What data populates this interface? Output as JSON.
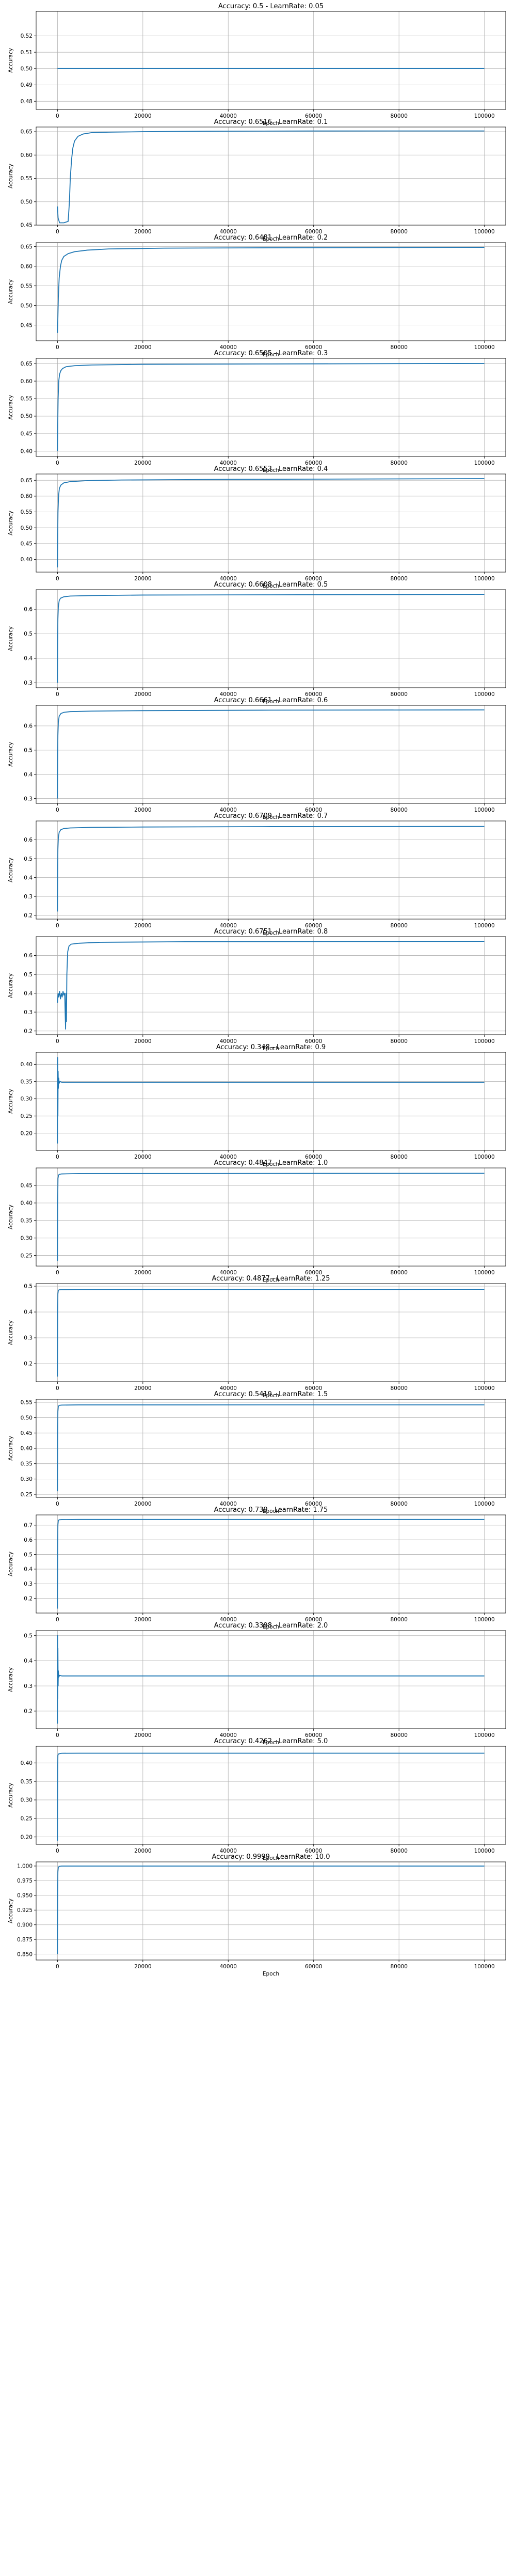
{
  "chart_data": [
    {
      "type": "line",
      "title": "Accuracy: 0.5 - LearnRate: 0.05",
      "xlabel": "Epoch",
      "ylabel": "Accuracy",
      "xlim": [
        -5000,
        105000
      ],
      "ylim": [
        0.475,
        0.535
      ],
      "xticks": [
        0,
        20000,
        40000,
        60000,
        80000,
        100000
      ],
      "yticks": [
        0.48,
        0.49,
        0.5,
        0.51,
        0.52
      ],
      "ytick_labels": [
        "0.48",
        "0.49",
        "0.50",
        "0.51",
        "0.52"
      ],
      "grid": true,
      "color": "#1f77b4",
      "x": [
        0,
        100000
      ],
      "y": [
        0.5,
        0.5
      ]
    },
    {
      "type": "line",
      "title": "Accuracy: 0.6516 - LearnRate: 0.1",
      "xlabel": "Epoch",
      "ylabel": "Accuracy",
      "xlim": [
        -5000,
        105000
      ],
      "ylim": [
        0.45,
        0.66
      ],
      "xticks": [
        0,
        20000,
        40000,
        60000,
        80000,
        100000
      ],
      "yticks": [
        0.45,
        0.5,
        0.55,
        0.6,
        0.65
      ],
      "ytick_labels": [
        "0.45",
        "0.50",
        "0.55",
        "0.60",
        "0.65"
      ],
      "grid": true,
      "color": "#1f77b4",
      "x": [
        0,
        150,
        500,
        1500,
        2500,
        2800,
        3000,
        3300,
        3600,
        4000,
        4800,
        6000,
        8000,
        12000,
        20000,
        35000,
        60000,
        100000
      ],
      "y": [
        0.49,
        0.465,
        0.455,
        0.455,
        0.458,
        0.5,
        0.55,
        0.59,
        0.615,
        0.63,
        0.64,
        0.645,
        0.648,
        0.649,
        0.65,
        0.651,
        0.6515,
        0.6516
      ]
    },
    {
      "type": "line",
      "title": "Accuracy: 0.6481 - LearnRate: 0.2",
      "xlabel": "Epoch",
      "ylabel": "Accuracy",
      "xlim": [
        -5000,
        105000
      ],
      "ylim": [
        0.41,
        0.66
      ],
      "xticks": [
        0,
        20000,
        40000,
        60000,
        80000,
        100000
      ],
      "yticks": [
        0.45,
        0.5,
        0.55,
        0.6,
        0.65
      ],
      "ytick_labels": [
        "0.45",
        "0.50",
        "0.55",
        "0.60",
        "0.65"
      ],
      "grid": true,
      "color": "#1f77b4",
      "x": [
        0,
        100,
        200,
        400,
        700,
        1000,
        1500,
        2500,
        4000,
        7000,
        12000,
        25000,
        50000,
        100000
      ],
      "y": [
        0.43,
        0.47,
        0.52,
        0.57,
        0.6,
        0.615,
        0.625,
        0.632,
        0.637,
        0.641,
        0.644,
        0.646,
        0.647,
        0.6481
      ]
    },
    {
      "type": "line",
      "title": "Accuracy: 0.6505 - LearnRate: 0.3",
      "xlabel": "Epoch",
      "ylabel": "Accuracy",
      "xlim": [
        -5000,
        105000
      ],
      "ylim": [
        0.385,
        0.665
      ],
      "xticks": [
        0,
        20000,
        40000,
        60000,
        80000,
        100000
      ],
      "yticks": [
        0.4,
        0.45,
        0.5,
        0.55,
        0.6,
        0.65
      ],
      "ytick_labels": [
        "0.40",
        "0.45",
        "0.50",
        "0.55",
        "0.60",
        "0.65"
      ],
      "grid": true,
      "color": "#1f77b4",
      "x": [
        0,
        60,
        150,
        300,
        500,
        800,
        1200,
        2000,
        4000,
        8000,
        20000,
        50000,
        100000
      ],
      "y": [
        0.4,
        0.47,
        0.55,
        0.6,
        0.62,
        0.63,
        0.636,
        0.641,
        0.644,
        0.646,
        0.648,
        0.649,
        0.6505
      ]
    },
    {
      "type": "line",
      "title": "Accuracy: 0.6553 - LearnRate: 0.4",
      "xlabel": "Epoch",
      "ylabel": "Accuracy",
      "xlim": [
        -5000,
        105000
      ],
      "ylim": [
        0.36,
        0.67
      ],
      "xticks": [
        0,
        20000,
        40000,
        60000,
        80000,
        100000
      ],
      "yticks": [
        0.4,
        0.45,
        0.5,
        0.55,
        0.6,
        0.65
      ],
      "ytick_labels": [
        "0.40",
        "0.45",
        "0.50",
        "0.55",
        "0.60",
        "0.65"
      ],
      "grid": true,
      "color": "#1f77b4",
      "x": [
        0,
        50,
        120,
        250,
        450,
        800,
        1500,
        3000,
        7000,
        15000,
        40000,
        100000
      ],
      "y": [
        0.375,
        0.46,
        0.55,
        0.6,
        0.625,
        0.635,
        0.642,
        0.646,
        0.649,
        0.651,
        0.653,
        0.6553
      ]
    },
    {
      "type": "line",
      "title": "Accuracy: 0.6608 - LearnRate: 0.5",
      "xlabel": "Epoch",
      "ylabel": "Accuracy",
      "xlim": [
        -5000,
        105000
      ],
      "ylim": [
        0.28,
        0.68
      ],
      "xticks": [
        0,
        20000,
        40000,
        60000,
        80000,
        100000
      ],
      "yticks": [
        0.3,
        0.4,
        0.5,
        0.6
      ],
      "ytick_labels": [
        "0.3",
        "0.4",
        "0.5",
        "0.6"
      ],
      "grid": true,
      "color": "#1f77b4",
      "x": [
        0,
        40,
        100,
        200,
        400,
        700,
        1500,
        3000,
        8000,
        20000,
        50000,
        100000
      ],
      "y": [
        0.3,
        0.45,
        0.56,
        0.61,
        0.635,
        0.645,
        0.651,
        0.654,
        0.656,
        0.658,
        0.659,
        0.6608
      ]
    },
    {
      "type": "line",
      "title": "Accuracy: 0.6661 - LearnRate: 0.6",
      "xlabel": "Epoch",
      "ylabel": "Accuracy",
      "xlim": [
        -5000,
        105000
      ],
      "ylim": [
        0.28,
        0.685
      ],
      "xticks": [
        0,
        20000,
        40000,
        60000,
        80000,
        100000
      ],
      "yticks": [
        0.3,
        0.4,
        0.5,
        0.6
      ],
      "ytick_labels": [
        "0.3",
        "0.4",
        "0.5",
        "0.6"
      ],
      "grid": true,
      "color": "#1f77b4",
      "x": [
        0,
        40,
        100,
        200,
        400,
        800,
        1500,
        3000,
        8000,
        20000,
        50000,
        100000
      ],
      "y": [
        0.3,
        0.45,
        0.56,
        0.615,
        0.64,
        0.651,
        0.656,
        0.659,
        0.661,
        0.663,
        0.665,
        0.6661
      ]
    },
    {
      "type": "line",
      "title": "Accuracy: 0.6709 - LearnRate: 0.7",
      "xlabel": "Epoch",
      "ylabel": "Accuracy",
      "xlim": [
        -5000,
        105000
      ],
      "ylim": [
        0.18,
        0.7
      ],
      "xticks": [
        0,
        20000,
        40000,
        60000,
        80000,
        100000
      ],
      "yticks": [
        0.2,
        0.3,
        0.4,
        0.5,
        0.6
      ],
      "ytick_labels": [
        "0.2",
        "0.3",
        "0.4",
        "0.5",
        "0.6"
      ],
      "grid": true,
      "color": "#1f77b4",
      "x": [
        0,
        40,
        100,
        200,
        400,
        800,
        1500,
        3000,
        8000,
        20000,
        50000,
        100000
      ],
      "y": [
        0.22,
        0.4,
        0.55,
        0.61,
        0.64,
        0.654,
        0.66,
        0.663,
        0.666,
        0.668,
        0.67,
        0.6709
      ]
    },
    {
      "type": "line",
      "title": "Accuracy: 0.6751 - LearnRate: 0.8",
      "xlabel": "Epoch",
      "ylabel": "Accuracy",
      "xlim": [
        -5000,
        105000
      ],
      "ylim": [
        0.18,
        0.7
      ],
      "xticks": [
        0,
        20000,
        40000,
        60000,
        80000,
        100000
      ],
      "yticks": [
        0.2,
        0.3,
        0.4,
        0.5,
        0.6
      ],
      "ytick_labels": [
        "0.2",
        "0.3",
        "0.4",
        "0.5",
        "0.6"
      ],
      "grid": true,
      "color": "#1f77b4",
      "x": [
        0,
        150,
        300,
        500,
        700,
        900,
        1100,
        1300,
        1500,
        1700,
        1800,
        1900,
        2000,
        2100,
        2200,
        2400,
        2700,
        3200,
        5000,
        10000,
        30000,
        100000
      ],
      "y": [
        0.35,
        0.4,
        0.38,
        0.41,
        0.37,
        0.4,
        0.38,
        0.41,
        0.39,
        0.4,
        0.3,
        0.21,
        0.4,
        0.25,
        0.5,
        0.62,
        0.65,
        0.66,
        0.665,
        0.67,
        0.673,
        0.6751
      ]
    },
    {
      "type": "line",
      "title": "Accuracy: 0.348 - LearnRate: 0.9",
      "xlabel": "Epoch",
      "ylabel": "Accuracy",
      "xlim": [
        -5000,
        105000
      ],
      "ylim": [
        0.15,
        0.435
      ],
      "xticks": [
        0,
        20000,
        40000,
        60000,
        80000,
        100000
      ],
      "yticks": [
        0.2,
        0.25,
        0.3,
        0.35,
        0.4
      ],
      "ytick_labels": [
        "0.20",
        "0.25",
        "0.30",
        "0.35",
        "0.40"
      ],
      "grid": true,
      "color": "#1f77b4",
      "x": [
        0,
        50,
        100,
        150,
        200,
        300,
        400,
        600,
        1000,
        100000
      ],
      "y": [
        0.17,
        0.42,
        0.25,
        0.38,
        0.33,
        0.36,
        0.345,
        0.35,
        0.348,
        0.348
      ]
    },
    {
      "type": "line",
      "title": "Accuracy: 0.4847 - LearnRate: 1.0",
      "xlabel": "Epoch",
      "ylabel": "Accuracy",
      "xlim": [
        -5000,
        105000
      ],
      "ylim": [
        0.22,
        0.5
      ],
      "xticks": [
        0,
        20000,
        40000,
        60000,
        80000,
        100000
      ],
      "yticks": [
        0.25,
        0.3,
        0.35,
        0.4,
        0.45
      ],
      "ytick_labels": [
        "0.25",
        "0.30",
        "0.35",
        "0.40",
        "0.45"
      ],
      "grid": true,
      "color": "#1f77b4",
      "x": [
        0,
        50,
        120,
        250,
        500,
        1000,
        5000,
        100000
      ],
      "y": [
        0.235,
        0.4,
        0.47,
        0.48,
        0.482,
        0.483,
        0.484,
        0.4847
      ]
    },
    {
      "type": "line",
      "title": "Accuracy: 0.4877 - LearnRate: 1.25",
      "xlabel": "Epoch",
      "ylabel": "Accuracy",
      "xlim": [
        -5000,
        105000
      ],
      "ylim": [
        0.13,
        0.51
      ],
      "xticks": [
        0,
        20000,
        40000,
        60000,
        80000,
        100000
      ],
      "yticks": [
        0.2,
        0.3,
        0.4,
        0.5
      ],
      "ytick_labels": [
        "0.2",
        "0.3",
        "0.4",
        "0.5"
      ],
      "grid": true,
      "color": "#1f77b4",
      "x": [
        0,
        50,
        100,
        200,
        400,
        800,
        5000,
        100000
      ],
      "y": [
        0.15,
        0.4,
        0.47,
        0.484,
        0.486,
        0.487,
        0.4875,
        0.4877
      ]
    },
    {
      "type": "line",
      "title": "Accuracy: 0.5419 - LearnRate: 1.5",
      "xlabel": "Epoch",
      "ylabel": "Accuracy",
      "xlim": [
        -5000,
        105000
      ],
      "ylim": [
        0.24,
        0.56
      ],
      "xticks": [
        0,
        20000,
        40000,
        60000,
        80000,
        100000
      ],
      "yticks": [
        0.25,
        0.3,
        0.35,
        0.4,
        0.45,
        0.5,
        0.55
      ],
      "ytick_labels": [
        "0.25",
        "0.30",
        "0.35",
        "0.40",
        "0.45",
        "0.50",
        "0.55"
      ],
      "grid": true,
      "color": "#1f77b4",
      "x": [
        0,
        50,
        100,
        200,
        400,
        1000,
        5000,
        100000
      ],
      "y": [
        0.26,
        0.45,
        0.52,
        0.537,
        0.54,
        0.541,
        0.5418,
        0.5419
      ]
    },
    {
      "type": "line",
      "title": "Accuracy: 0.739 - LearnRate: 1.75",
      "xlabel": "Epoch",
      "ylabel": "Accuracy",
      "xlim": [
        -5000,
        105000
      ],
      "ylim": [
        0.1,
        0.77
      ],
      "xticks": [
        0,
        20000,
        40000,
        60000,
        80000,
        100000
      ],
      "yticks": [
        0.2,
        0.3,
        0.4,
        0.5,
        0.6,
        0.7
      ],
      "ytick_labels": [
        "0.2",
        "0.3",
        "0.4",
        "0.5",
        "0.6",
        "0.7"
      ],
      "grid": true,
      "color": "#1f77b4",
      "x": [
        0,
        50,
        100,
        200,
        400,
        1000,
        5000,
        100000
      ],
      "y": [
        0.13,
        0.55,
        0.7,
        0.732,
        0.737,
        0.738,
        0.739,
        0.739
      ]
    },
    {
      "type": "line",
      "title": "Accuracy: 0.3398 - LearnRate: 2.0",
      "xlabel": "Epoch",
      "ylabel": "Accuracy",
      "xlim": [
        -5000,
        105000
      ],
      "ylim": [
        0.13,
        0.52
      ],
      "xticks": [
        0,
        20000,
        40000,
        60000,
        80000,
        100000
      ],
      "yticks": [
        0.2,
        0.3,
        0.4,
        0.5
      ],
      "ytick_labels": [
        "0.2",
        "0.3",
        "0.4",
        "0.5"
      ],
      "grid": true,
      "color": "#1f77b4",
      "x": [
        0,
        30,
        60,
        100,
        150,
        200,
        300,
        500,
        1000,
        100000
      ],
      "y": [
        0.15,
        0.5,
        0.25,
        0.45,
        0.3,
        0.36,
        0.335,
        0.342,
        0.3398,
        0.3398
      ]
    },
    {
      "type": "line",
      "title": "Accuracy: 0.4262 - LearnRate: 5.0",
      "xlabel": "Epoch",
      "ylabel": "Accuracy",
      "xlim": [
        -5000,
        105000
      ],
      "ylim": [
        0.18,
        0.445
      ],
      "xticks": [
        0,
        20000,
        40000,
        60000,
        80000,
        100000
      ],
      "yticks": [
        0.2,
        0.25,
        0.3,
        0.35,
        0.4
      ],
      "ytick_labels": [
        "0.20",
        "0.25",
        "0.30",
        "0.35",
        "0.40"
      ],
      "grid": true,
      "color": "#1f77b4",
      "x": [
        0,
        50,
        100,
        200,
        500,
        1000,
        5000,
        100000
      ],
      "y": [
        0.19,
        0.38,
        0.42,
        0.424,
        0.425,
        0.426,
        0.4262,
        0.4262
      ]
    },
    {
      "type": "line",
      "title": "Accuracy: 0.9999 - LearnRate: 10.0",
      "xlabel": "Epoch",
      "ylabel": "Accuracy",
      "xlim": [
        -5000,
        105000
      ],
      "ylim": [
        0.84,
        1.007
      ],
      "xticks": [
        0,
        20000,
        40000,
        60000,
        80000,
        100000
      ],
      "yticks": [
        0.85,
        0.875,
        0.9,
        0.925,
        0.95,
        0.975,
        1.0
      ],
      "ytick_labels": [
        "0.850",
        "0.875",
        "0.900",
        "0.925",
        "0.950",
        "0.975",
        "1.000"
      ],
      "grid": true,
      "color": "#1f77b4",
      "x": [
        0,
        40,
        100,
        200,
        500,
        1000,
        100000
      ],
      "y": [
        0.85,
        0.95,
        0.99,
        0.998,
        0.9995,
        0.9999,
        0.9999
      ]
    }
  ]
}
